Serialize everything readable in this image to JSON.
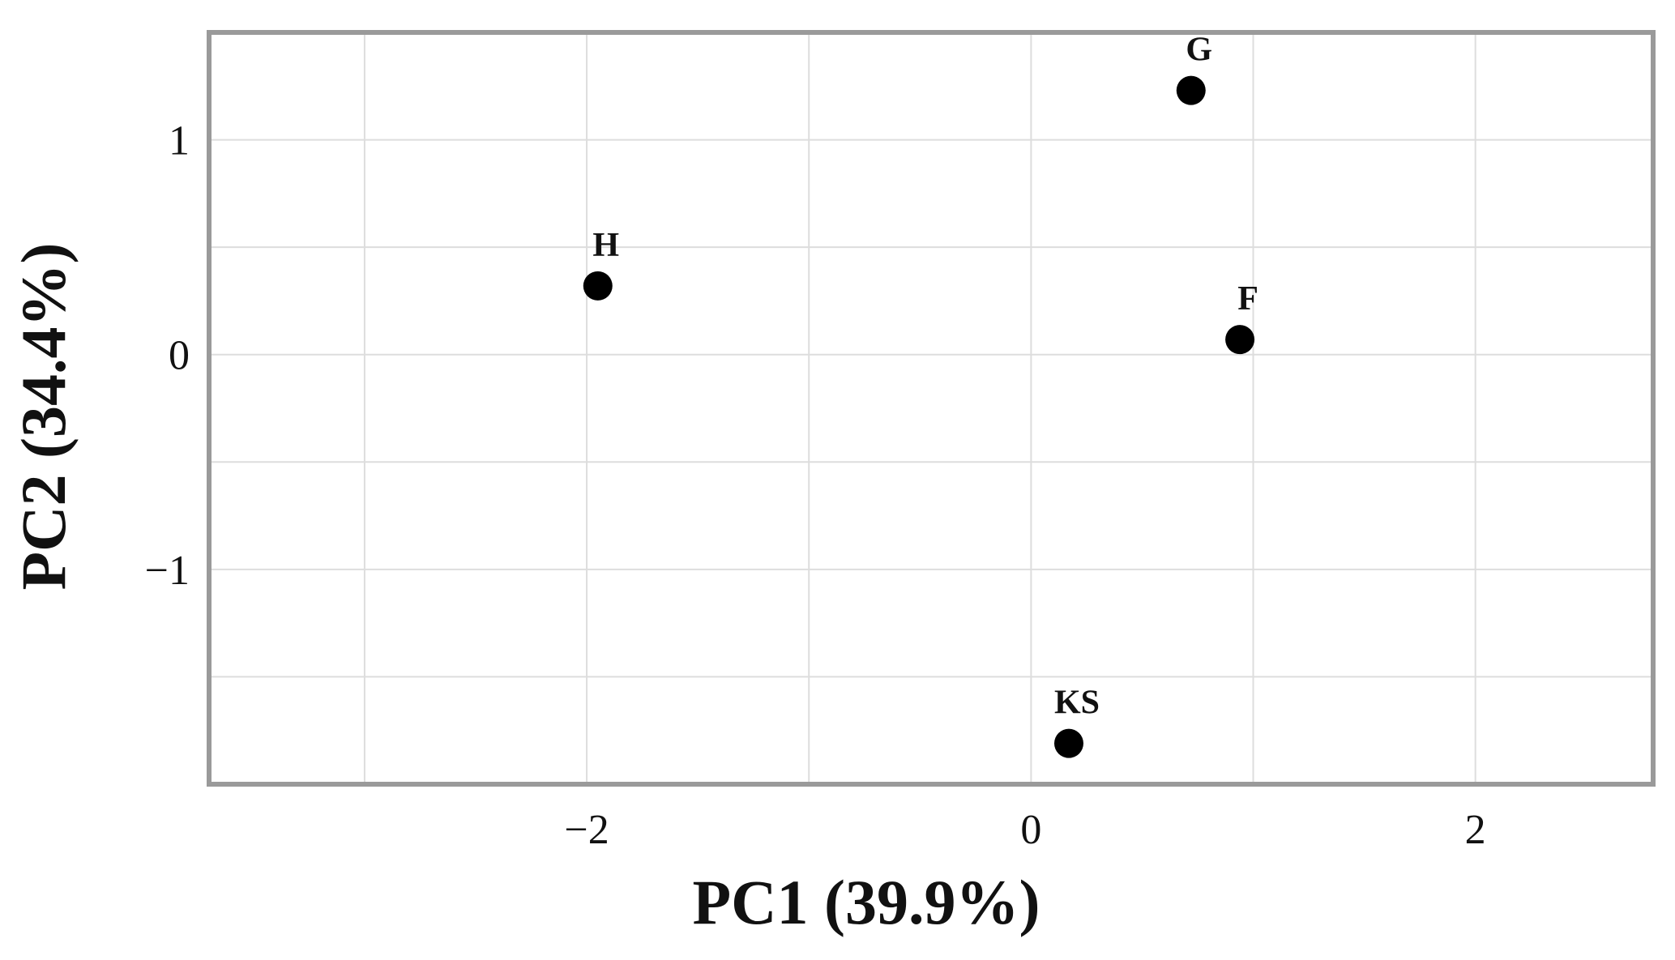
{
  "chart_data": {
    "type": "scatter",
    "title": "",
    "xlabel": "PC1 (39.9%)",
    "ylabel": "PC2 (34.4%)",
    "xlim": [
      -3.7,
      2.8
    ],
    "ylim": [
      -2.0,
      1.5
    ],
    "x_ticks": [
      -2,
      0,
      2
    ],
    "x_tick_labels": [
      "−2",
      "0",
      "2"
    ],
    "y_ticks": [
      -1,
      0,
      1
    ],
    "y_tick_labels": [
      "−1",
      "0",
      "1"
    ],
    "grid": true,
    "points": [
      {
        "label": "G",
        "x": 0.72,
        "y": 1.23
      },
      {
        "label": "H",
        "x": -1.95,
        "y": 0.32
      },
      {
        "label": "F",
        "x": 0.94,
        "y": 0.07
      },
      {
        "label": "KS",
        "x": 0.17,
        "y": -1.81
      }
    ]
  },
  "colors": {
    "frame": "#9a9a9a",
    "grid": "#dddddd",
    "marker": "#000000"
  }
}
